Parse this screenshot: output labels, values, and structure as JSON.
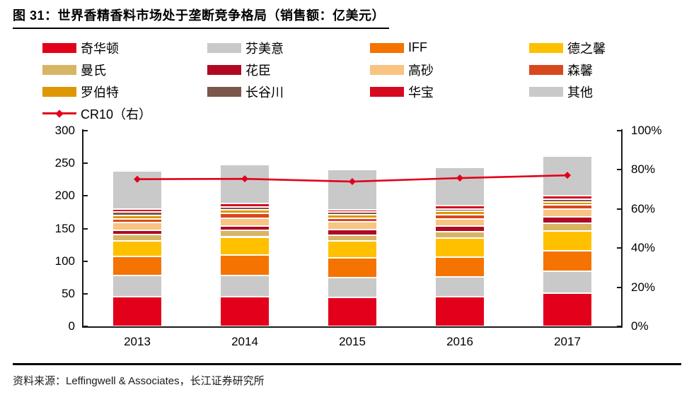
{
  "figure": {
    "title": "图 31：世界香精香料市场处于垄断竞争格局（销售额：亿美元）",
    "source": "资料来源：Leffingwell & Associates，长江证券研究所"
  },
  "chart_data": {
    "type": "bar",
    "stacked": true,
    "grid": false,
    "legend_position": "top",
    "categories": [
      "2013",
      "2014",
      "2015",
      "2016",
      "2017"
    ],
    "series": [
      {
        "name": "奇华顿",
        "color": "#E2001A",
        "values": [
          46,
          46,
          44,
          45,
          51
        ]
      },
      {
        "name": "芬美意",
        "color": "#C9C9C9",
        "values": [
          32,
          32,
          31,
          31,
          33
        ]
      },
      {
        "name": "IFF",
        "color": "#F57300",
        "values": [
          29,
          31,
          30,
          30,
          32
        ]
      },
      {
        "name": "德之馨",
        "color": "#FFC000",
        "values": [
          24,
          28,
          26,
          29,
          30
        ]
      },
      {
        "name": "曼氏",
        "color": "#D8B465",
        "values": [
          10,
          10,
          9,
          10,
          12
        ]
      },
      {
        "name": "花臣",
        "color": "#B00A23",
        "values": [
          6,
          7,
          8,
          9,
          10
        ]
      },
      {
        "name": "高砂",
        "color": "#F8C383",
        "values": [
          12,
          12,
          12,
          11,
          12
        ]
      },
      {
        "name": "森馨",
        "color": "#D8481D",
        "values": [
          6,
          7,
          6,
          6,
          6
        ]
      },
      {
        "name": "罗伯特",
        "color": "#DE9700",
        "values": [
          5,
          6,
          5,
          5,
          5
        ]
      },
      {
        "name": "长谷川",
        "color": "#7B564B",
        "values": [
          5,
          4,
          4,
          4,
          4
        ]
      },
      {
        "name": "华宝",
        "color": "#D60A1E",
        "values": [
          5,
          5,
          4,
          5,
          5
        ]
      },
      {
        "name": "其他",
        "color": "#C9C9C9",
        "values": [
          58,
          60,
          61,
          59,
          61
        ]
      }
    ],
    "bar_totals": [
      238,
      248,
      240,
      244,
      261
    ],
    "line_series": {
      "name": "CR10（右）",
      "color": "#E2001A",
      "axis": "right",
      "values": [
        75.2,
        75.4,
        74.0,
        75.8,
        77.2
      ]
    },
    "left_axis": {
      "max": 300,
      "ticks": [
        0,
        50,
        100,
        150,
        200,
        250,
        300
      ]
    },
    "right_axis": {
      "max": 100,
      "ticks": [
        "0%",
        "20%",
        "40%",
        "60%",
        "80%",
        "100%"
      ]
    }
  }
}
